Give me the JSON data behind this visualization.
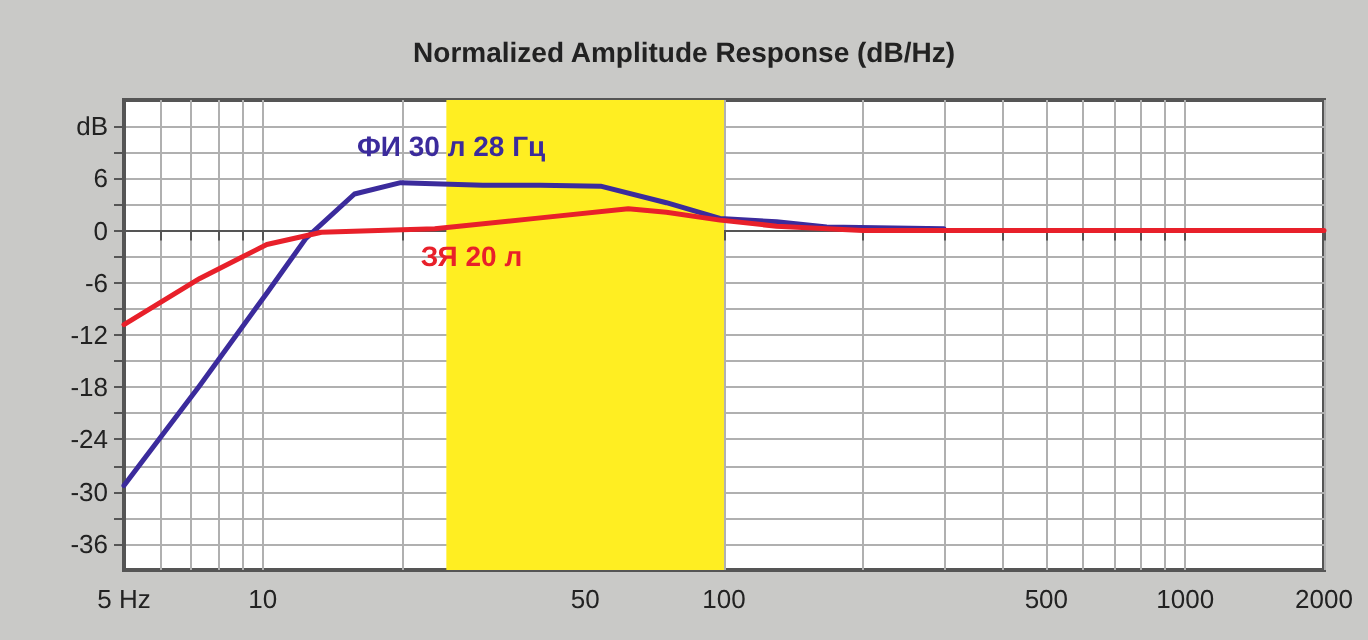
{
  "chart_data": {
    "type": "line",
    "title": "Normalized Amplitude Response (dB/Hz)",
    "x": [
      5,
      7.3,
      10.2,
      12.4,
      15.8,
      19.9,
      30,
      40,
      54,
      75,
      98,
      130,
      167,
      300
    ],
    "series": [
      {
        "name": "ФИ 30 л 28 Гц",
        "color": "#3b2b9c",
        "values": [
          -29.3,
          -17.8,
          -7.2,
          -0.9,
          4.2,
          5.5,
          5.2,
          5.2,
          5.1,
          3.2,
          1.4,
          1.0,
          0.4,
          0.2
        ]
      },
      {
        "name": "ЗЯ 20 л",
        "color": "#e8202a",
        "x": [
          5,
          7.3,
          10.2,
          13.4,
          23.6,
          39,
          62,
          75,
          98,
          130,
          200,
          500,
          1000,
          2000
        ],
        "values": [
          -10.8,
          -5.5,
          -1.6,
          -0.2,
          0.2,
          1.4,
          2.5,
          2.1,
          1.2,
          0.5,
          0,
          0,
          0,
          0
        ]
      }
    ],
    "log": "x",
    "xlim": [
      5,
      2000
    ],
    "xticks": [
      {
        "value": 5,
        "label": "5 Hz"
      },
      {
        "value": 6,
        "label": null
      },
      {
        "value": 7,
        "label": null
      },
      {
        "value": 8,
        "label": null
      },
      {
        "value": 9,
        "label": null
      },
      10,
      {
        "value": 20,
        "label": null
      },
      {
        "value": 30,
        "label": null
      },
      {
        "value": 40,
        "label": null
      },
      50,
      {
        "value": 60,
        "label": null
      },
      {
        "value": 70,
        "label": null
      },
      {
        "value": 80,
        "label": null
      },
      {
        "value": 90,
        "label": null
      },
      100,
      {
        "value": 200,
        "label": null
      },
      {
        "value": 300,
        "label": null
      },
      {
        "value": 400,
        "label": null
      },
      500,
      {
        "value": 600,
        "label": null
      },
      {
        "value": 700,
        "label": null
      },
      {
        "value": 800,
        "label": null
      },
      {
        "value": 900,
        "label": null
      },
      1000,
      2000
    ],
    "ylim": [
      -39,
      15
    ],
    "yticks": [
      {
        "value": 12,
        "label": "dB"
      },
      {
        "value": 9,
        "label": null
      },
      6,
      {
        "value": 3,
        "label": null
      },
      0,
      {
        "value": -3,
        "label": null
      },
      -6,
      {
        "value": -9,
        "label": null
      },
      -12,
      {
        "value": -15,
        "label": null
      },
      -18,
      {
        "value": -21,
        "label": null
      },
      -24,
      {
        "value": -27,
        "label": null
      },
      -30,
      {
        "value": -33,
        "label": null
      },
      -36
    ],
    "bands": [
      {
        "axis": "x",
        "from": 25,
        "to": 100,
        "color": "#ffee22"
      }
    ],
    "grid": true,
    "legend": false,
    "marker": "none",
    "line_style": "solid"
  }
}
